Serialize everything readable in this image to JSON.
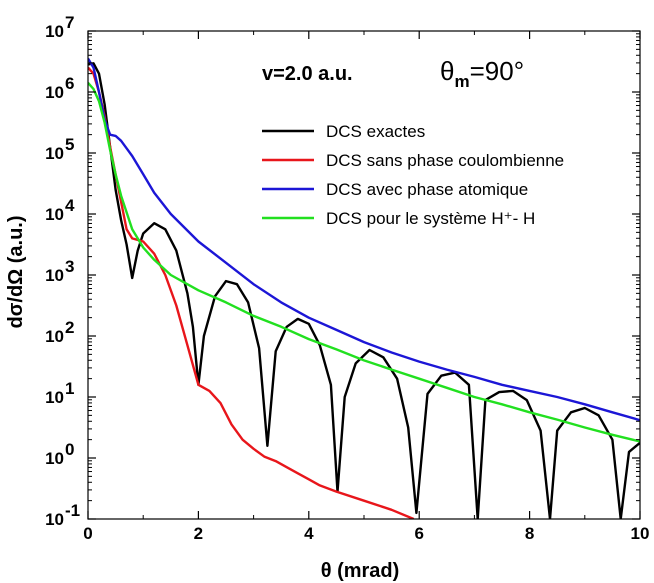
{
  "chart_data": {
    "type": "line",
    "title": "",
    "xlabel": "θ (mrad)",
    "ylabel": "dσ/dΩ (a.u.)",
    "xlim": [
      0,
      10
    ],
    "ylim_log10": [
      -1,
      7
    ],
    "yscale": "log",
    "grid": false,
    "x_ticks": [
      "0",
      "2",
      "4",
      "6",
      "8",
      "10"
    ],
    "y_ticks": [
      {
        "base": "10",
        "exp": "-1"
      },
      {
        "base": "10",
        "exp": "0"
      },
      {
        "base": "10",
        "exp": "1"
      },
      {
        "base": "10",
        "exp": "2"
      },
      {
        "base": "10",
        "exp": "3"
      },
      {
        "base": "10",
        "exp": "4"
      },
      {
        "base": "10",
        "exp": "5"
      },
      {
        "base": "10",
        "exp": "6"
      },
      {
        "base": "10",
        "exp": "7"
      }
    ],
    "annotations": {
      "velocity": "v=2.0 a.u.",
      "theta_m": {
        "symbol": "θ",
        "subscript": "m",
        "value": "=90°"
      }
    },
    "legend_position": "upper-right",
    "series": [
      {
        "name": "DCS exactes",
        "color": "#000000",
        "x": [
          0,
          0.1,
          0.2,
          0.3,
          0.4,
          0.5,
          0.6,
          0.7,
          0.8,
          0.9,
          1.0,
          1.2,
          1.4,
          1.6,
          1.8,
          1.9,
          2.0,
          2.1,
          2.3,
          2.5,
          2.7,
          2.9,
          3.1,
          3.25,
          3.4,
          3.6,
          3.8,
          4.0,
          4.2,
          4.4,
          4.52,
          4.65,
          4.85,
          5.1,
          5.35,
          5.6,
          5.8,
          5.95,
          6.15,
          6.4,
          6.65,
          6.9,
          7.06,
          7.2,
          7.45,
          7.7,
          7.95,
          8.2,
          8.37,
          8.5,
          8.75,
          9.0,
          9.25,
          9.5,
          9.65,
          9.8,
          10.0
        ],
        "log10y": [
          6.45,
          6.47,
          6.3,
          5.8,
          5.1,
          4.4,
          3.9,
          3.5,
          2.95,
          3.4,
          3.68,
          3.85,
          3.75,
          3.4,
          2.7,
          2.15,
          1.2,
          2.0,
          2.65,
          2.9,
          2.85,
          2.55,
          1.8,
          0.2,
          1.75,
          2.15,
          2.28,
          2.2,
          1.85,
          1.2,
          -0.55,
          1.0,
          1.55,
          1.77,
          1.65,
          1.3,
          0.5,
          -0.9,
          1.05,
          1.35,
          1.4,
          1.2,
          -1.0,
          0.95,
          1.08,
          1.1,
          0.95,
          0.45,
          -1.0,
          0.45,
          0.75,
          0.82,
          0.7,
          0.3,
          -1.0,
          0.1,
          0.25
        ]
      },
      {
        "name": "DCS sans phase coulombienne",
        "color": "#e8161b",
        "x": [
          0,
          0.1,
          0.2,
          0.3,
          0.4,
          0.5,
          0.6,
          0.7,
          0.8,
          1.0,
          1.2,
          1.4,
          1.6,
          1.8,
          2.0,
          2.2,
          2.4,
          2.6,
          2.8,
          3.0,
          3.2,
          3.4,
          3.6,
          3.8,
          4.0,
          4.2,
          4.5,
          5.0,
          5.5,
          5.9
        ],
        "log10y": [
          6.4,
          6.3,
          6.0,
          5.6,
          5.1,
          4.65,
          4.2,
          3.75,
          3.6,
          3.55,
          3.35,
          3.0,
          2.5,
          1.85,
          1.2,
          1.1,
          0.9,
          0.55,
          0.3,
          0.15,
          0.02,
          -0.05,
          -0.15,
          -0.25,
          -0.35,
          -0.45,
          -0.55,
          -0.7,
          -0.85,
          -1.0
        ]
      },
      {
        "name": "DCS avec phase atomique",
        "color": "#1c16d6",
        "x": [
          0,
          0.1,
          0.2,
          0.3,
          0.4,
          0.5,
          0.6,
          0.8,
          1.0,
          1.2,
          1.5,
          2.0,
          2.5,
          3.0,
          3.5,
          4.0,
          4.5,
          5.0,
          5.5,
          6.0,
          6.5,
          7.0,
          7.5,
          8.0,
          8.5,
          9.0,
          9.5,
          10.0
        ],
        "log10y": [
          6.55,
          6.4,
          6.0,
          5.55,
          5.3,
          5.28,
          5.2,
          4.95,
          4.65,
          4.35,
          4.0,
          3.55,
          3.2,
          2.85,
          2.55,
          2.3,
          2.1,
          1.9,
          1.73,
          1.58,
          1.45,
          1.33,
          1.2,
          1.1,
          1.0,
          0.88,
          0.75,
          0.62
        ]
      },
      {
        "name": "DCS pour le système H⁺- H",
        "color": "#22e020",
        "x": [
          0,
          0.1,
          0.2,
          0.3,
          0.4,
          0.5,
          0.6,
          0.8,
          1.0,
          1.2,
          1.5,
          2.0,
          2.5,
          3.0,
          3.5,
          4.0,
          4.5,
          5.0,
          5.5,
          6.0,
          6.5,
          7.0,
          7.5,
          8.0,
          8.5,
          9.0,
          9.5,
          10.0
        ],
        "log10y": [
          6.15,
          6.05,
          5.85,
          5.5,
          5.05,
          4.65,
          4.3,
          3.75,
          3.45,
          3.25,
          3.0,
          2.75,
          2.55,
          2.33,
          2.15,
          1.95,
          1.78,
          1.6,
          1.45,
          1.3,
          1.15,
          1.0,
          0.88,
          0.75,
          0.63,
          0.5,
          0.38,
          0.27
        ]
      }
    ]
  }
}
